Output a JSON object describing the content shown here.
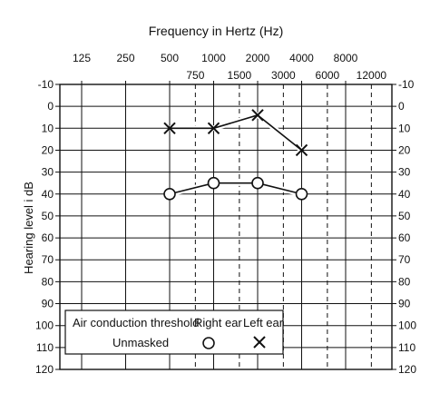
{
  "chart_data": {
    "type": "line",
    "title": "Frequency in Hertz (Hz)",
    "ylabel": "Hearing level i dB",
    "xlabel": "",
    "x_octave": [
      125,
      250,
      500,
      1000,
      2000,
      4000,
      8000
    ],
    "x_octave_labels": [
      "125",
      "250",
      "500",
      "1000",
      "2000",
      "4000",
      "8000"
    ],
    "x_inter": [
      750,
      1500,
      3000,
      6000,
      12000
    ],
    "x_inter_labels": [
      "750",
      "1500",
      "3000",
      "6000",
      "12000"
    ],
    "ylim": [
      -10,
      120
    ],
    "y_ticks": [
      -10,
      0,
      10,
      20,
      30,
      40,
      50,
      60,
      70,
      80,
      90,
      100,
      110,
      120
    ],
    "y_tick_labels": [
      "-10",
      "0",
      "10",
      "20",
      "30",
      "40",
      "50",
      "60",
      "70",
      "80",
      "90",
      "100",
      "110",
      "120"
    ],
    "series": [
      {
        "name": "Left ear",
        "marker": "x",
        "x": [
          500,
          1000,
          2000,
          4000
        ],
        "y": [
          10,
          10,
          4,
          20
        ]
      },
      {
        "name": "Right ear",
        "marker": "o",
        "x": [
          500,
          1000,
          2000,
          4000
        ],
        "y": [
          40,
          35,
          35,
          40
        ]
      }
    ],
    "legend": {
      "placement": "bottom-center",
      "title": "Air conduction threshold",
      "subtitle": "Unmasked",
      "right_label": "Right ear",
      "left_label": "Left ear"
    },
    "grid": true
  }
}
